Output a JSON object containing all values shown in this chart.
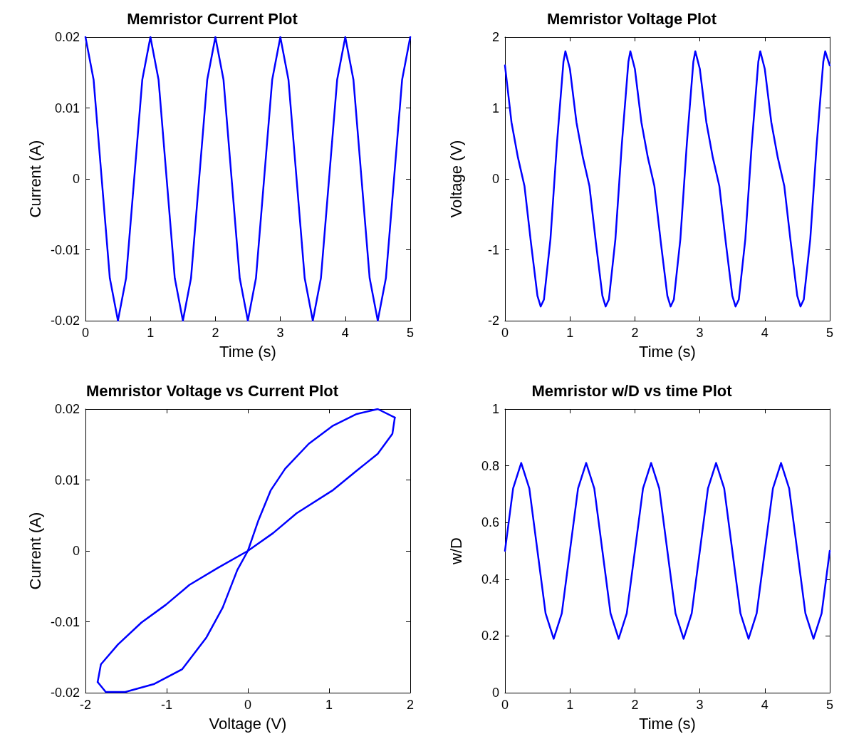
{
  "chart_data": [
    {
      "type": "line",
      "title": "Memristor Current Plot",
      "xlabel": "Time (s)",
      "ylabel": "Current (A)",
      "color": "#0000ff",
      "grid": false,
      "x": [
        0,
        0.125,
        0.25,
        0.375,
        0.5,
        0.625,
        0.75,
        0.875,
        1,
        1.125,
        1.25,
        1.375,
        1.5,
        1.625,
        1.75,
        1.875,
        2,
        2.125,
        2.25,
        2.375,
        2.5,
        2.625,
        2.75,
        2.875,
        3,
        3.125,
        3.25,
        3.375,
        3.5,
        3.625,
        3.75,
        3.875,
        4,
        4.125,
        4.25,
        4.375,
        4.5,
        4.625,
        4.75,
        4.875,
        5
      ],
      "values": [
        0.02,
        0.014,
        0,
        -0.014,
        -0.02,
        -0.014,
        0,
        0.014,
        0.02,
        0.014,
        0,
        -0.014,
        -0.02,
        -0.014,
        0,
        0.014,
        0.02,
        0.014,
        0,
        -0.014,
        -0.02,
        -0.014,
        0,
        0.014,
        0.02,
        0.014,
        0,
        -0.014,
        -0.02,
        -0.014,
        0,
        0.014,
        0.02,
        0.014,
        0,
        -0.014,
        -0.02,
        -0.014,
        0,
        0.014,
        0.02
      ],
      "xlim": [
        0,
        5
      ],
      "xticks": [
        0,
        1,
        2,
        3,
        4,
        5
      ],
      "ylim": [
        -0.02,
        0.02
      ],
      "yticks": [
        -0.02,
        -0.01,
        0,
        0.01,
        0.02
      ]
    },
    {
      "type": "line",
      "title": "Memristor Voltage Plot",
      "xlabel": "Time (s)",
      "ylabel": "Voltage (V)",
      "color": "#0000ff",
      "grid": false,
      "x": [
        0,
        0.1,
        0.2,
        0.3,
        0.4,
        0.5,
        0.55,
        0.6,
        0.7,
        0.8,
        0.9,
        0.93,
        1,
        1.1,
        1.2,
        1.3,
        1.4,
        1.5,
        1.55,
        1.6,
        1.7,
        1.8,
        1.9,
        1.93,
        2,
        2.1,
        2.2,
        2.3,
        2.4,
        2.5,
        2.55,
        2.6,
        2.7,
        2.8,
        2.9,
        2.93,
        3,
        3.1,
        3.2,
        3.3,
        3.4,
        3.5,
        3.55,
        3.6,
        3.7,
        3.8,
        3.9,
        3.93,
        4,
        4.1,
        4.2,
        4.3,
        4.4,
        4.5,
        4.55,
        4.6,
        4.7,
        4.8,
        4.9,
        4.93,
        5
      ],
      "values": [
        1.6,
        0.8,
        0.3,
        -0.1,
        -0.9,
        -1.65,
        -1.8,
        -1.7,
        -0.85,
        0.5,
        1.65,
        1.8,
        1.55,
        0.8,
        0.3,
        -0.1,
        -0.9,
        -1.65,
        -1.8,
        -1.7,
        -0.85,
        0.5,
        1.65,
        1.8,
        1.55,
        0.8,
        0.3,
        -0.1,
        -0.9,
        -1.65,
        -1.8,
        -1.7,
        -0.85,
        0.5,
        1.65,
        1.8,
        1.55,
        0.8,
        0.3,
        -0.1,
        -0.9,
        -1.65,
        -1.8,
        -1.7,
        -0.85,
        0.5,
        1.65,
        1.8,
        1.55,
        0.8,
        0.3,
        -0.1,
        -0.9,
        -1.65,
        -1.8,
        -1.7,
        -0.85,
        0.5,
        1.65,
        1.8,
        1.6
      ],
      "xlim": [
        0,
        5
      ],
      "xticks": [
        0,
        1,
        2,
        3,
        4,
        5
      ],
      "ylim": [
        -2,
        2
      ],
      "yticks": [
        -2,
        -1,
        0,
        1,
        2
      ]
    },
    {
      "type": "line",
      "title": "Memristor Voltage vs Current Plot",
      "xlabel": "Voltage (V)",
      "ylabel": "Current (A)",
      "grid": false,
      "series": [
        {
          "color": "#0000ff",
          "x": [
            -1.85,
            -1.81,
            -1.6,
            -1.31,
            -1.01,
            -0.72,
            -0.37,
            0,
            0.31,
            0.6,
            1.04,
            1.34,
            1.6,
            1.78,
            1.81
          ],
          "values": [
            -0.0185,
            -0.016,
            -0.0132,
            -0.0101,
            -0.0076,
            -0.0048,
            -0.0024,
            0,
            0.0025,
            0.0053,
            0.0085,
            0.0113,
            0.0137,
            0.0165,
            0.0188
          ]
        },
        {
          "color": "#0000ff",
          "x": [
            -1.85,
            -1.75,
            -1.51,
            -1.16,
            -0.81,
            -0.51,
            -0.31,
            -0.13,
            0,
            0.13,
            0.28,
            0.46,
            0.75,
            1.04,
            1.34,
            1.6,
            1.81
          ],
          "values": [
            -0.0185,
            -0.0199,
            -0.0199,
            -0.0188,
            -0.0167,
            -0.0122,
            -0.008,
            -0.0027,
            0,
            0.0043,
            0.0085,
            0.0116,
            0.0151,
            0.0176,
            0.0193,
            0.02,
            0.0188
          ]
        }
      ],
      "xlim": [
        -2,
        2
      ],
      "xticks": [
        -2,
        -1,
        0,
        1,
        2
      ],
      "ylim": [
        -0.02,
        0.02
      ],
      "yticks": [
        -0.02,
        -0.01,
        0,
        0.01,
        0.02
      ]
    },
    {
      "type": "line",
      "title": "Memristor w/D vs time Plot",
      "xlabel": "Time (s)",
      "ylabel": "w/D",
      "color": "#0000ff",
      "grid": false,
      "x": [
        0,
        0.125,
        0.25,
        0.375,
        0.5,
        0.625,
        0.75,
        0.875,
        1,
        1.125,
        1.25,
        1.375,
        1.5,
        1.625,
        1.75,
        1.875,
        2,
        2.125,
        2.25,
        2.375,
        2.5,
        2.625,
        2.75,
        2.875,
        3,
        3.125,
        3.25,
        3.375,
        3.5,
        3.625,
        3.75,
        3.875,
        4,
        4.125,
        4.25,
        4.375,
        4.5,
        4.625,
        4.75,
        4.875,
        5
      ],
      "values": [
        0.5,
        0.72,
        0.81,
        0.72,
        0.5,
        0.28,
        0.19,
        0.28,
        0.5,
        0.72,
        0.81,
        0.72,
        0.5,
        0.28,
        0.19,
        0.28,
        0.5,
        0.72,
        0.81,
        0.72,
        0.5,
        0.28,
        0.19,
        0.28,
        0.5,
        0.72,
        0.81,
        0.72,
        0.5,
        0.28,
        0.19,
        0.28,
        0.5,
        0.72,
        0.81,
        0.72,
        0.5,
        0.28,
        0.19,
        0.28,
        0.5
      ],
      "xlim": [
        0,
        5
      ],
      "xticks": [
        0,
        1,
        2,
        3,
        4,
        5
      ],
      "ylim": [
        0,
        1
      ],
      "yticks": [
        0,
        0.2,
        0.4,
        0.6,
        0.8,
        1
      ]
    }
  ]
}
